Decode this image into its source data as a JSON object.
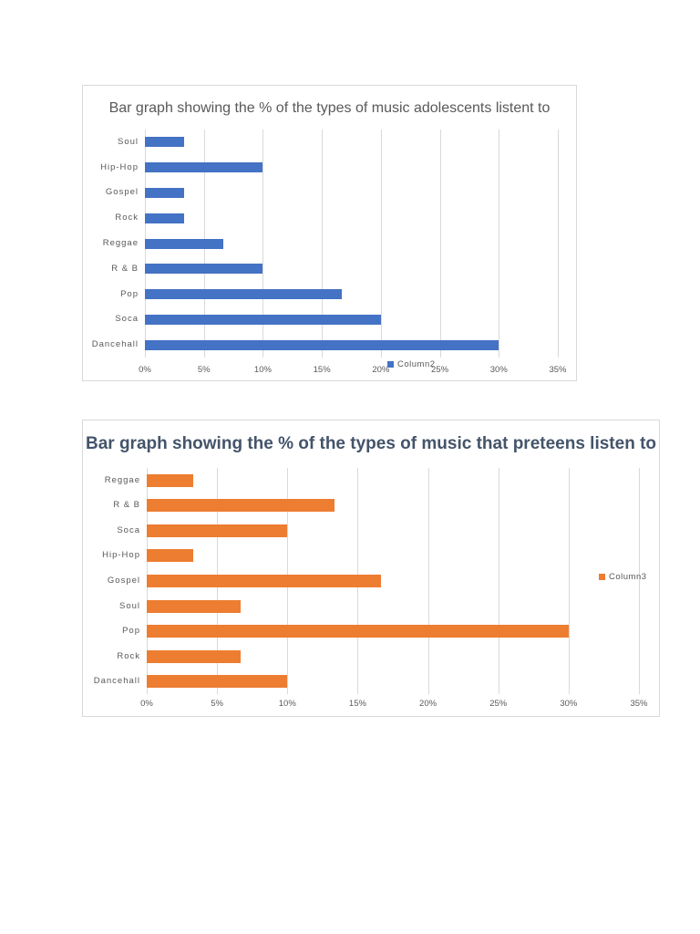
{
  "chart_data": [
    {
      "type": "bar",
      "orientation": "horizontal",
      "title": "Bar graph showing the % of the types of music adolescents listent to",
      "categories": [
        "Soul",
        "Hip-Hop",
        "Gospel",
        "Rock",
        "Reggae",
        "R & B",
        "Pop",
        "Soca",
        "Dancehall"
      ],
      "series": [
        {
          "name": "Column2",
          "color": "#4472c4",
          "values": [
            3.33,
            10,
            3.33,
            3.33,
            6.67,
            10,
            16.67,
            20,
            30
          ]
        }
      ],
      "xlabel": "",
      "ylabel": "",
      "xlim": [
        0,
        35
      ],
      "xticks": [
        "0%",
        "5%",
        "10%",
        "15%",
        "20%",
        "25%",
        "30%",
        "35%"
      ],
      "grid": "vertical",
      "legend_position": "bottom"
    },
    {
      "type": "bar",
      "orientation": "horizontal",
      "title": "Bar graph showing the % of the types of music that preteens listen to",
      "categories": [
        "Reggae",
        "R & B",
        "Soca",
        "Hip-Hop",
        "Gospel",
        "Soul",
        "Pop",
        "Rock",
        "Dancehall"
      ],
      "series": [
        {
          "name": "Column3",
          "color": "#ed7d31",
          "values": [
            3.33,
            13.33,
            10,
            3.33,
            16.67,
            6.67,
            30,
            6.67,
            10
          ]
        }
      ],
      "xlabel": "",
      "ylabel": "",
      "xlim": [
        0,
        35
      ],
      "xticks": [
        "0%",
        "5%",
        "10%",
        "15%",
        "20%",
        "25%",
        "30%",
        "35%"
      ],
      "grid": "vertical",
      "legend_position": "right"
    }
  ]
}
